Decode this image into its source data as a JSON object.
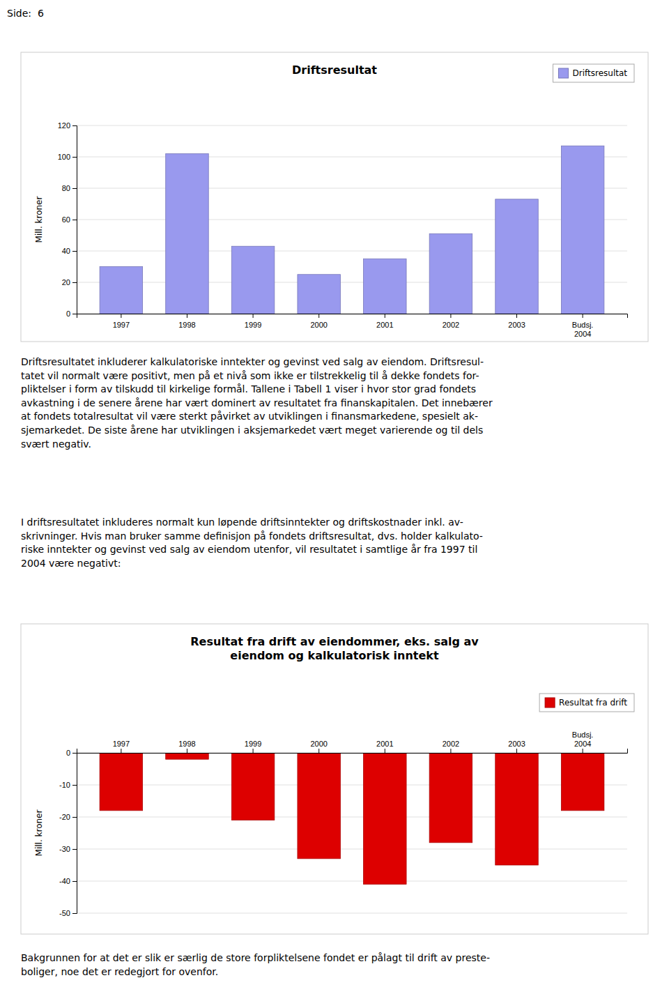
{
  "page_header": "Side:  6",
  "chart_data": [
    {
      "type": "bar",
      "title": "Driftsresultat",
      "categories": [
        "1997",
        "1998",
        "1999",
        "2000",
        "2001",
        "2002",
        "2003",
        "Budsj.\n2004"
      ],
      "series": [
        {
          "name": "Driftsresultat",
          "color": "#9999EE",
          "values": [
            30,
            102,
            43,
            25,
            35,
            51,
            73,
            107
          ]
        }
      ],
      "ylabel": "Mill. kroner",
      "ylim": [
        0,
        120
      ],
      "yticks": [
        0,
        20,
        40,
        60,
        80,
        100,
        120
      ],
      "grid": true,
      "legend": "upper right"
    },
    {
      "type": "bar",
      "title": "Resultat fra drift av eiendommer, eks. salg av\neiendom og kalkulatorisk inntekt",
      "categories": [
        "1997",
        "1998",
        "1999",
        "2000",
        "2001",
        "2002",
        "2003",
        "Budsj.\n2004"
      ],
      "series": [
        {
          "name": "Resultat fra drift",
          "color": "#DD0000",
          "values": [
            -18,
            -2,
            -21,
            -33,
            -41,
            -28,
            -35,
            -18
          ]
        }
      ],
      "ylabel": "Mill. kroner",
      "ylim": [
        -50,
        0
      ],
      "yticks": [
        -50,
        -40,
        -30,
        -20,
        -10,
        0
      ],
      "grid": true,
      "legend": "upper right"
    }
  ],
  "text_block1": "Driftsresultatet inkluderer kalkulatoriske inntekter og gevinst ved salg av eiendom. Driftsresul-\ntatet vil normalt være positivt, men på et nivå som ikke er tilstrekkelig til å dekke fondets for-\npliktelser i form av tilskudd til kirkelige formål. Tallene i Tabell 1 viser i hvor stor grad fondets\navkastning i de senere årene har vært dominert av resultatet fra finanskapitalen. Det innebærer\nat fondets totalresultat vil være sterkt påvirket av utviklingen i finansmarkedene, spesielt ak-\nsjemarkedet. De siste årene har utviklingen i aksjemarkedet vært meget varierende og til dels\nsvært negativ.",
  "text_block2": "I driftsresultatet inkluderes normalt kun løpende driftsinntekter og driftskostnader inkl. av-\nskrivninger. Hvis man bruker samme definisjon på fondets driftsresultat, dvs. holder kalkulato-\nriske inntekter og gevinst ved salg av eiendom utenfor, vil resultatet i samtlige år fra 1997 til\n2004 være negativt:",
  "text_footer": "Bakgrunnen for at det er slik er særlig de store forpliktelsene fondet er pålagt til drift av preste-\nboliger, noe det er redegjort for ovenfor."
}
